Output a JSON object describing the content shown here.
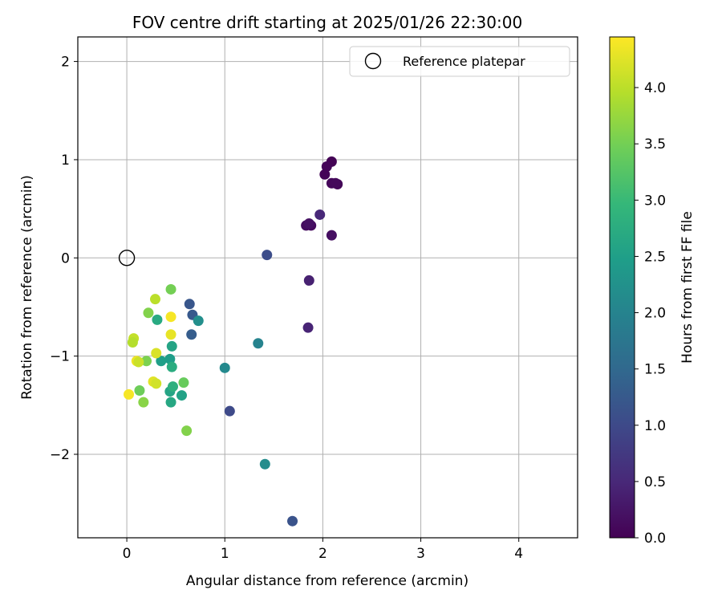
{
  "chart_data": {
    "type": "scatter",
    "title": "FOV centre drift starting at 2025/01/26 22:30:00",
    "xlabel": "Angular distance from reference (arcmin)",
    "ylabel": "Rotation from reference (arcmin)",
    "xlim": [
      -0.5,
      4.6
    ],
    "ylim": [
      -2.85,
      2.25
    ],
    "xticks": [
      0,
      1,
      2,
      3,
      4
    ],
    "xtick_labels": [
      "0",
      "1",
      "2",
      "3",
      "4"
    ],
    "yticks": [
      2,
      1,
      0,
      -1,
      -2
    ],
    "ytick_labels": [
      "2",
      "1",
      "0",
      "−1",
      "−2"
    ],
    "grid": true,
    "legend": {
      "placement": "top-right",
      "entries": [
        {
          "label": "Reference platepar",
          "marker": "open-circle"
        }
      ]
    },
    "reference_point": {
      "x": 0,
      "y": 0
    },
    "colorbar": {
      "label": "Hours from first FF file",
      "min": 0.0,
      "max": 4.45,
      "ticks": [
        0.0,
        0.5,
        1.0,
        1.5,
        2.0,
        2.5,
        3.0,
        3.5,
        4.0
      ],
      "tick_labels": [
        "0.0",
        "0.5",
        "1.0",
        "1.5",
        "2.0",
        "2.5",
        "3.0",
        "3.5",
        "4.0"
      ],
      "colormap": "viridis",
      "colors": [
        "#440154",
        "#482878",
        "#3e4989",
        "#31688e",
        "#26828e",
        "#1f9e89",
        "#35b779",
        "#6ece58",
        "#b5de2b",
        "#fde725"
      ]
    },
    "points": [
      {
        "x": 2.09,
        "y": 0.98,
        "c": 0.02
      },
      {
        "x": 2.04,
        "y": 0.93,
        "c": 0.05
      },
      {
        "x": 2.02,
        "y": 0.85,
        "c": 0.04
      },
      {
        "x": 2.09,
        "y": 0.76,
        "c": 0.08
      },
      {
        "x": 2.15,
        "y": 0.75,
        "c": 0.06
      },
      {
        "x": 2.13,
        "y": 0.76,
        "c": 0.1
      },
      {
        "x": 1.83,
        "y": 0.33,
        "c": 0.15
      },
      {
        "x": 1.88,
        "y": 0.33,
        "c": 0.12
      },
      {
        "x": 1.86,
        "y": 0.35,
        "c": 0.2
      },
      {
        "x": 2.09,
        "y": 0.23,
        "c": 0.18
      },
      {
        "x": 1.97,
        "y": 0.44,
        "c": 0.5
      },
      {
        "x": 1.86,
        "y": -0.23,
        "c": 0.4
      },
      {
        "x": 1.85,
        "y": -0.71,
        "c": 0.45
      },
      {
        "x": 1.43,
        "y": 0.03,
        "c": 1.05
      },
      {
        "x": 0.64,
        "y": -0.47,
        "c": 1.2
      },
      {
        "x": 0.67,
        "y": -0.58,
        "c": 1.25
      },
      {
        "x": 0.66,
        "y": -0.78,
        "c": 1.3
      },
      {
        "x": 1.05,
        "y": -1.56,
        "c": 1.0
      },
      {
        "x": 1.69,
        "y": -2.68,
        "c": 1.15
      },
      {
        "x": 0.73,
        "y": -0.64,
        "c": 2.2
      },
      {
        "x": 1.0,
        "y": -1.12,
        "c": 2.1
      },
      {
        "x": 1.34,
        "y": -0.87,
        "c": 2.0
      },
      {
        "x": 1.41,
        "y": -2.1,
        "c": 2.15
      },
      {
        "x": 0.31,
        "y": -0.63,
        "c": 2.7
      },
      {
        "x": 0.46,
        "y": -0.9,
        "c": 2.6
      },
      {
        "x": 0.35,
        "y": -1.05,
        "c": 2.5
      },
      {
        "x": 0.44,
        "y": -1.03,
        "c": 2.45
      },
      {
        "x": 0.46,
        "y": -1.11,
        "c": 2.75
      },
      {
        "x": 0.44,
        "y": -1.36,
        "c": 2.6
      },
      {
        "x": 0.47,
        "y": -1.31,
        "c": 2.8
      },
      {
        "x": 0.56,
        "y": -1.4,
        "c": 2.55
      },
      {
        "x": 0.45,
        "y": -1.47,
        "c": 2.65
      },
      {
        "x": 0.45,
        "y": -0.32,
        "c": 3.5
      },
      {
        "x": 0.22,
        "y": -0.56,
        "c": 3.6
      },
      {
        "x": 0.2,
        "y": -1.05,
        "c": 3.55
      },
      {
        "x": 0.13,
        "y": -1.35,
        "c": 3.45
      },
      {
        "x": 0.17,
        "y": -1.47,
        "c": 3.65
      },
      {
        "x": 0.58,
        "y": -1.27,
        "c": 3.4
      },
      {
        "x": 0.61,
        "y": -1.76,
        "c": 3.6
      },
      {
        "x": 0.29,
        "y": -0.42,
        "c": 4.0
      },
      {
        "x": 0.45,
        "y": -0.6,
        "c": 4.4
      },
      {
        "x": 0.45,
        "y": -0.78,
        "c": 4.3
      },
      {
        "x": 0.07,
        "y": -0.82,
        "c": 4.05
      },
      {
        "x": 0.06,
        "y": -0.86,
        "c": 3.95
      },
      {
        "x": 0.3,
        "y": -0.97,
        "c": 4.2
      },
      {
        "x": 0.1,
        "y": -1.05,
        "c": 4.35
      },
      {
        "x": 0.12,
        "y": -1.06,
        "c": 4.1
      },
      {
        "x": 0.27,
        "y": -1.26,
        "c": 4.25
      },
      {
        "x": 0.3,
        "y": -1.28,
        "c": 4.15
      },
      {
        "x": 0.02,
        "y": -1.39,
        "c": 4.4
      }
    ]
  }
}
